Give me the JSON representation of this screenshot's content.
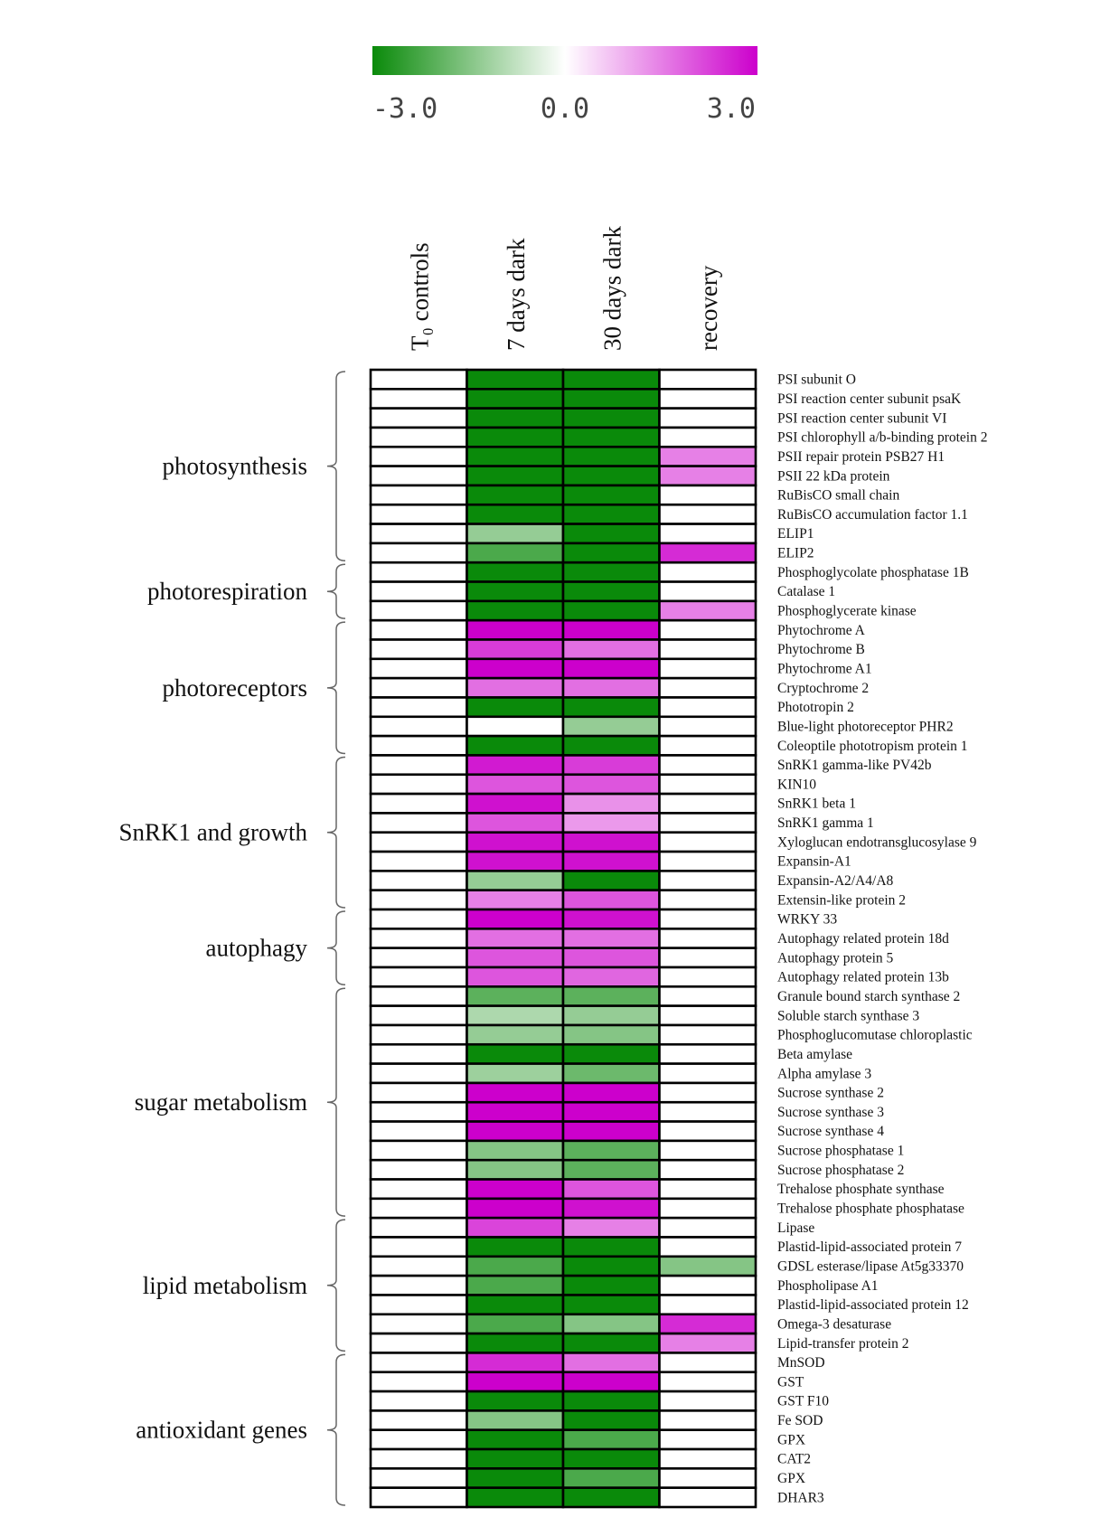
{
  "chart_data": {
    "type": "heatmap",
    "colorscale": {
      "min": -3.0,
      "mid": 0.0,
      "max": 3.0,
      "min_color": "#0a8a0a",
      "mid_color": "#ffffff",
      "max_color": "#cc00cc",
      "tick_labels": [
        "-3.0",
        "0.0",
        "3.0"
      ]
    },
    "columns": [
      "T₀ controls",
      "7 days dark",
      "30 days dark",
      "recovery"
    ],
    "groups": [
      {
        "label": "photosynthesis",
        "start": 0,
        "end": 9
      },
      {
        "label": "photorespiration",
        "start": 10,
        "end": 12
      },
      {
        "label": "photoreceptors",
        "start": 13,
        "end": 19
      },
      {
        "label": "SnRK1 and growth",
        "start": 20,
        "end": 27
      },
      {
        "label": "autophagy",
        "start": 28,
        "end": 31
      },
      {
        "label": "sugar metabolism",
        "start": 32,
        "end": 43
      },
      {
        "label": "lipid metabolism",
        "start": 44,
        "end": 50
      },
      {
        "label": "antioxidant genes",
        "start": 51,
        "end": 58
      }
    ],
    "rows": [
      "PSI subunit O",
      "PSI reaction center subunit psaK",
      "PSI reaction center subunit VI",
      "PSI chlorophyll a/b-binding protein 2",
      "PSII repair protein PSB27 H1",
      "PSII 22 kDa protein",
      "RuBisCO small chain",
      "RuBisCO accumulation factor 1.1",
      "ELIP1",
      "ELIP2",
      "Phosphoglycolate phosphatase 1B",
      "Catalase 1",
      "Phosphoglycerate kinase",
      "Phytochrome A",
      "Phytochrome B",
      "Phytochrome A1",
      "Cryptochrome 2",
      "Phototropin 2",
      "Blue-light photoreceptor PHR2",
      "Coleoptile phototropism protein 1",
      "SnRK1 gamma-like PV42b",
      "KIN10",
      "SnRK1 beta 1",
      "SnRK1 gamma 1",
      "Xyloglucan endotransglucosylase 9",
      "Expansin-A1",
      "Expansin-A2/A4/A8",
      "Extensin-like protein 2",
      "WRKY 33",
      "Autophagy related protein 18d",
      "Autophagy protein 5",
      "Autophagy related protein 13b",
      "Granule bound starch synthase 2",
      "Soluble starch synthase 3",
      "Phosphoglucomutase chloroplastic",
      "Beta amylase",
      "Alpha amylase 3",
      "Sucrose synthase 2",
      "Sucrose synthase 3",
      "Sucrose synthase 4",
      "Sucrose phosphatase 1",
      "Sucrose phosphatase 2",
      "Trehalose phosphate synthase",
      "Trehalose phosphate phosphatase",
      "Lipase",
      "Plastid-lipid-associated protein 7",
      "GDSL esterase/lipase At5g33370",
      "Phospholipase A1",
      "Plastid-lipid-associated protein 12",
      "Omega-3 desaturase",
      "Lipid-transfer protein 2",
      "MnSOD",
      "GST",
      "GST F10",
      "Fe SOD",
      "GPX",
      "CAT2",
      "GPX",
      "DHAR3"
    ],
    "values": [
      [
        0,
        -3,
        -3,
        0
      ],
      [
        0,
        -3,
        -3,
        0
      ],
      [
        0,
        -3,
        -3,
        0
      ],
      [
        0,
        -3,
        -3,
        0
      ],
      [
        0,
        -3,
        -3,
        1.5
      ],
      [
        0,
        -3,
        -3,
        1.5
      ],
      [
        0,
        -3,
        -3,
        0
      ],
      [
        0,
        -3,
        -3,
        0
      ],
      [
        0,
        -1.3,
        -3,
        0
      ],
      [
        0,
        -2.2,
        -3,
        2.5
      ],
      [
        0,
        -3,
        -3,
        0
      ],
      [
        0,
        -3,
        -3,
        0
      ],
      [
        0,
        -3,
        -3,
        1.5
      ],
      [
        0,
        3,
        3,
        0
      ],
      [
        0,
        2.3,
        1.7,
        0
      ],
      [
        0,
        3,
        3,
        0
      ],
      [
        0,
        1.7,
        1.7,
        0
      ],
      [
        0,
        -3,
        -3,
        0
      ],
      [
        0,
        0,
        -1.3,
        0
      ],
      [
        0,
        -3,
        -3,
        0
      ],
      [
        0,
        2.7,
        2.3,
        0
      ],
      [
        0,
        2,
        2,
        0
      ],
      [
        0,
        2.8,
        1.3,
        0
      ],
      [
        0,
        2,
        1.2,
        0
      ],
      [
        0,
        2.8,
        2.8,
        0
      ],
      [
        0,
        2.8,
        2.8,
        0
      ],
      [
        0,
        -1.3,
        -3,
        0
      ],
      [
        0,
        1.5,
        2,
        0
      ],
      [
        0,
        3,
        2.8,
        0
      ],
      [
        0,
        1.7,
        1.7,
        0
      ],
      [
        0,
        2,
        2,
        0
      ],
      [
        0,
        2,
        1.8,
        0
      ],
      [
        0,
        -2,
        -2,
        0
      ],
      [
        0,
        -1,
        -1.3,
        0
      ],
      [
        0,
        -1.3,
        -1.5,
        0
      ],
      [
        0,
        -3,
        -3,
        0
      ],
      [
        0,
        -1.2,
        -1.8,
        0
      ],
      [
        0,
        3,
        3,
        0
      ],
      [
        0,
        3,
        3,
        0
      ],
      [
        0,
        3,
        3,
        0
      ],
      [
        0,
        -1.5,
        -2,
        0
      ],
      [
        0,
        -1.5,
        -2,
        0
      ],
      [
        0,
        3,
        2,
        0
      ],
      [
        0,
        3,
        2.8,
        0
      ],
      [
        0,
        2.2,
        1.5,
        0
      ],
      [
        0,
        -3,
        -3,
        0
      ],
      [
        0,
        -2.2,
        -3,
        -1.5
      ],
      [
        0,
        -2.2,
        -3,
        0
      ],
      [
        0,
        -3,
        -3,
        0
      ],
      [
        0,
        -2.2,
        -1.5,
        2.5
      ],
      [
        0,
        -3,
        -3,
        1.5
      ],
      [
        0,
        2.5,
        1.7,
        0
      ],
      [
        0,
        3,
        3,
        0
      ],
      [
        0,
        -3,
        -3,
        0
      ],
      [
        0,
        -1.5,
        -3,
        0
      ],
      [
        0,
        -3,
        -2.2,
        0
      ],
      [
        0,
        -3,
        -3,
        0
      ],
      [
        0,
        -3,
        -2.2,
        0
      ],
      [
        0,
        -3,
        -3,
        0
      ]
    ]
  }
}
